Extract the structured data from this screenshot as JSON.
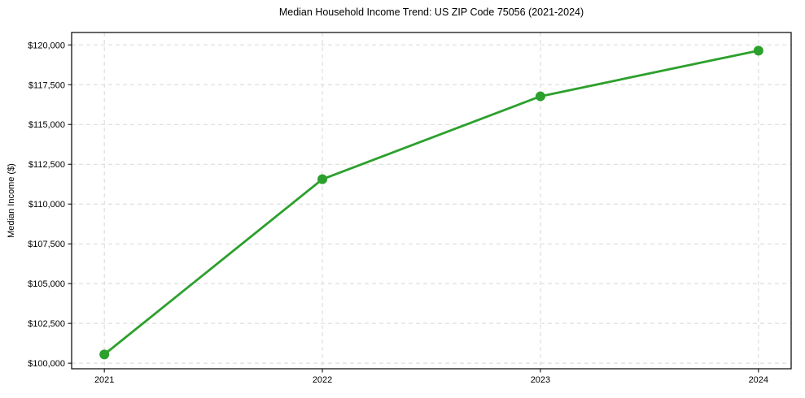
{
  "chart_data": {
    "type": "line",
    "title": "Median Household Income Trend: US ZIP Code 75056 (2021-2024)",
    "xlabel": "",
    "ylabel": "Median Income ($)",
    "x": [
      2021,
      2022,
      2023,
      2024
    ],
    "x_tick_labels": [
      "2021",
      "2022",
      "2023",
      "2024"
    ],
    "series": [
      {
        "name": "Median Household Income",
        "values": [
          100550,
          111560,
          116770,
          119640
        ],
        "color": "#2ca02c",
        "marker": "circle",
        "marker_radius": 6,
        "line_width": 2.8
      }
    ],
    "y_ticks": [
      100000,
      102500,
      105000,
      107500,
      110000,
      112500,
      115000,
      117500,
      120000
    ],
    "y_tick_labels": [
      "$100,000",
      "$102,500",
      "$105,000",
      "$107,500",
      "$110,000",
      "$112,500",
      "$115,000",
      "$117,500",
      "$120,000"
    ],
    "xlim": [
      2020.85,
      2024.15
    ],
    "ylim": [
      99650,
      120780
    ],
    "grid": {
      "visible": true,
      "style": "dashed",
      "color": "#d8d8d8",
      "axes": "both"
    },
    "legend": "none",
    "colors": {
      "line": "#2ca02c",
      "spine": "#000000",
      "tick": "#000000",
      "background": "#ffffff"
    }
  }
}
